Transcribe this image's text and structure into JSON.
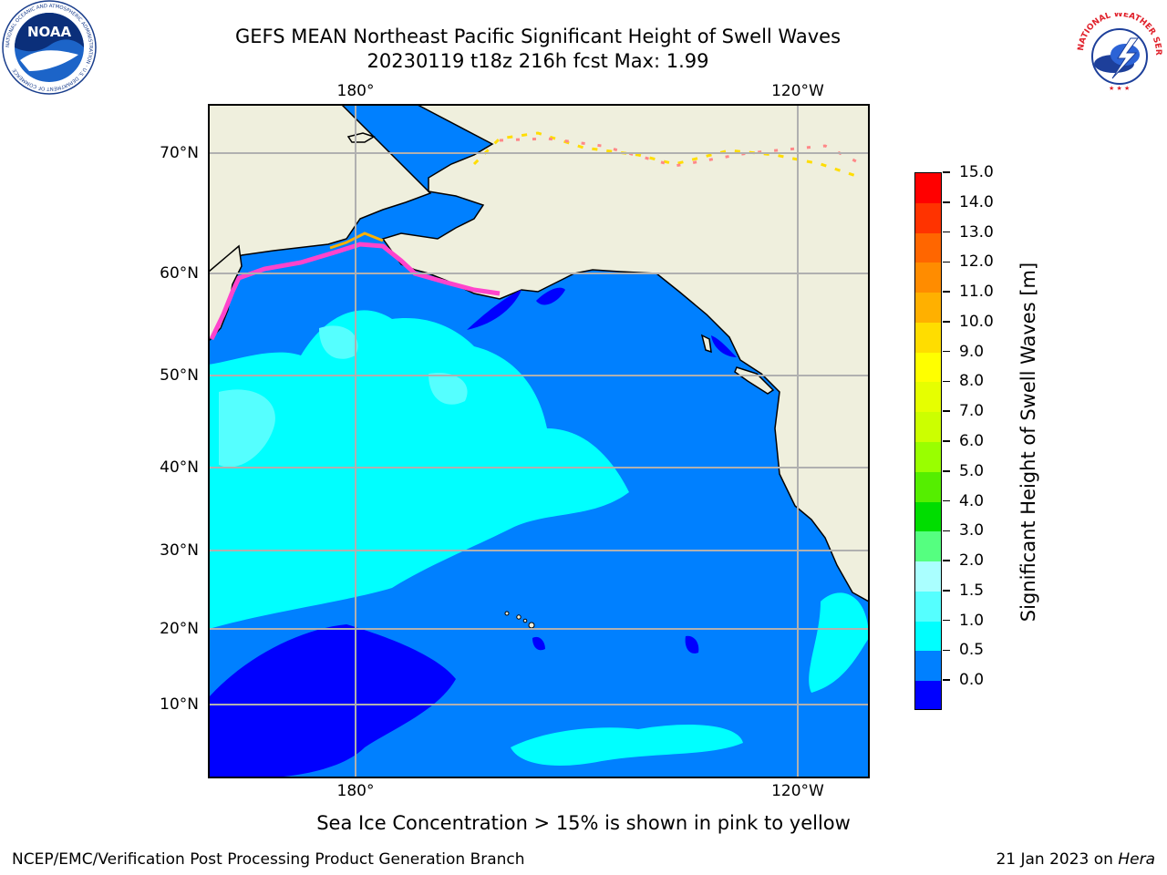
{
  "header": {
    "title_line1": "GEFS MEAN Northeast Pacific Significant Height of Swell Waves",
    "title_line2": "20230119 t18z 216h fcst   Max: 1.99"
  },
  "logos": {
    "left": "NOAA",
    "left_ring_text": "NATIONAL OCEANIC AND ATMOSPHERIC ADMINISTRATION · U.S. DEPARTMENT OF COMMERCE",
    "right_ring_text": "NATIONAL WEATHER SERVICE"
  },
  "map": {
    "lon_labels": [
      "180°",
      "120°W"
    ],
    "lat_labels": [
      "70°N",
      "60°N",
      "50°N",
      "40°N",
      "30°N",
      "20°N",
      "10°N"
    ],
    "colors": {
      "land": "#efefdd",
      "ocean_0_0.5": "#0000ff",
      "ocean_0.5_1.0": "#0080ff",
      "ocean_1.0_1.5": "#00ffff",
      "ocean_1.5_2.0": "#55ffff",
      "sea_ice": "#ff44cc",
      "grid": "#b0b0b0"
    }
  },
  "colorbar": {
    "title": "Significant Height of Swell Waves [m]",
    "tick_labels": [
      "15.0",
      "14.0",
      "13.0",
      "12.0",
      "11.0",
      "10.0",
      "9.0",
      "8.0",
      "7.0",
      "6.0",
      "5.0",
      "4.0",
      "3.0",
      "2.0",
      "1.5",
      "1.0",
      "0.5",
      "0.0"
    ],
    "colors_top_to_bottom": [
      "#ff0000",
      "#ff3300",
      "#ff6600",
      "#ff8c00",
      "#ffb000",
      "#ffdd00",
      "#ffff00",
      "#e6ff00",
      "#ccff00",
      "#99ff00",
      "#55ee00",
      "#00dd00",
      "#55ff80",
      "#aaffff",
      "#55ffff",
      "#00ffff",
      "#0080ff",
      "#0000ff"
    ]
  },
  "note": "Sea Ice Concentration > 15% is shown in pink to yellow",
  "footer": {
    "left": "NCEP/EMC/Verification Post Processing Product Generation Branch",
    "date": "21 Jan 2023 on",
    "machine": "Hera"
  }
}
